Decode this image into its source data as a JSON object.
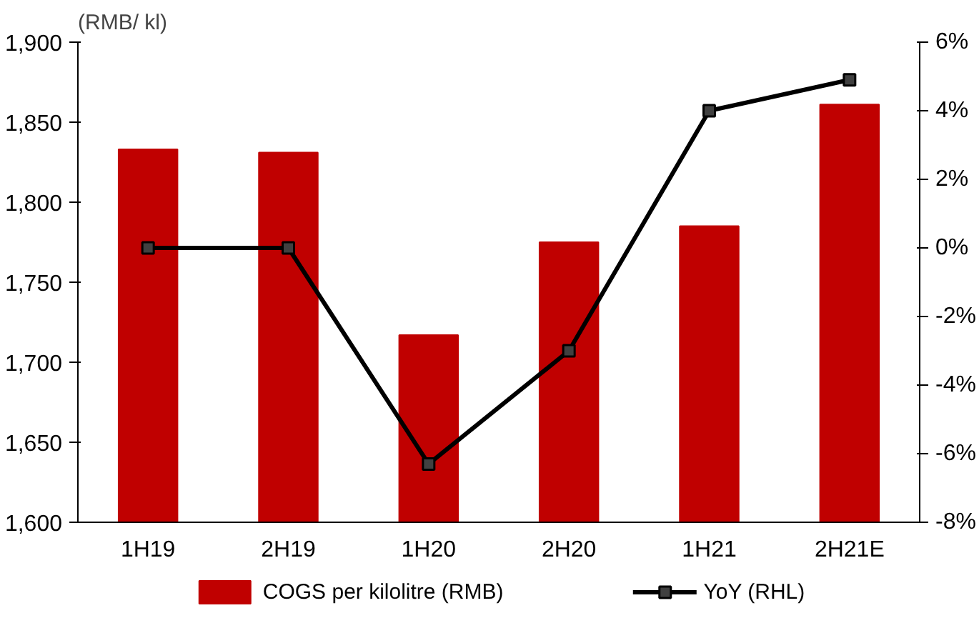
{
  "chart_data": {
    "type": "bar",
    "ylabel": "(RMB/ kl)",
    "categories": [
      "1H19",
      "2H19",
      "1H20",
      "2H20",
      "1H21",
      "2H21E"
    ],
    "series": [
      {
        "name": "COGS per kilolitre (RMB)",
        "type": "bar",
        "color": "#c00000",
        "values": [
          1833,
          1831,
          1717,
          1775,
          1785,
          1861
        ]
      },
      {
        "name": "YoY (RHL)",
        "type": "line",
        "axis": "y2",
        "color": "#000000",
        "marker": "square",
        "values": [
          0,
          0,
          -6.3,
          -3.0,
          4.0,
          4.9
        ]
      }
    ],
    "ylim": [
      1600,
      1900
    ],
    "yticks": [
      {
        "value": 1600,
        "label": "1,600"
      },
      {
        "value": 1650,
        "label": "1,650"
      },
      {
        "value": 1700,
        "label": "1,700"
      },
      {
        "value": 1750,
        "label": "1,750"
      },
      {
        "value": 1800,
        "label": "1,800"
      },
      {
        "value": 1850,
        "label": "1,850"
      },
      {
        "value": 1900,
        "label": "1,900"
      }
    ],
    "y2lim": [
      -8,
      6
    ],
    "y2ticks": [
      {
        "value": -8,
        "label": "-8%"
      },
      {
        "value": -6,
        "label": "-6%"
      },
      {
        "value": -4,
        "label": "-4%"
      },
      {
        "value": -2,
        "label": "-2%"
      },
      {
        "value": 0,
        "label": "0%"
      },
      {
        "value": 2,
        "label": "2%"
      },
      {
        "value": 4,
        "label": "4%"
      },
      {
        "value": 6,
        "label": "6%"
      }
    ],
    "grid": false,
    "legend": "bottom"
  }
}
